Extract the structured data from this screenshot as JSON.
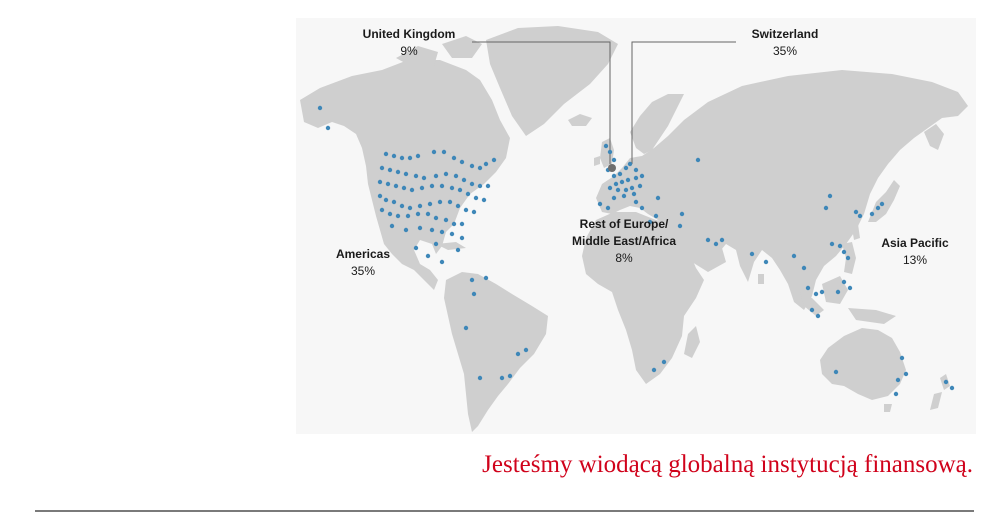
{
  "colors": {
    "land": "#cfcfcf",
    "dot": "#3e87b8",
    "leader": "#666666",
    "tagline": "#d0021b",
    "rule": "#7a7a7a"
  },
  "regions": [
    {
      "id": "united-kingdom",
      "name": "United Kingdom",
      "share": "9%"
    },
    {
      "id": "switzerland",
      "name": "Switzerland",
      "share": "35%"
    },
    {
      "id": "americas",
      "name": "Americas",
      "share": "35%"
    },
    {
      "id": "rest-of-europe",
      "name_line1": "Rest of Europe/",
      "name_line2": "Middle East/Africa",
      "share": "8%"
    },
    {
      "id": "asia-pacific",
      "name": "Asia Pacific",
      "share": "13%"
    }
  ],
  "tagline": "Jesteśmy wiodącą globalną instytucją finansową."
}
